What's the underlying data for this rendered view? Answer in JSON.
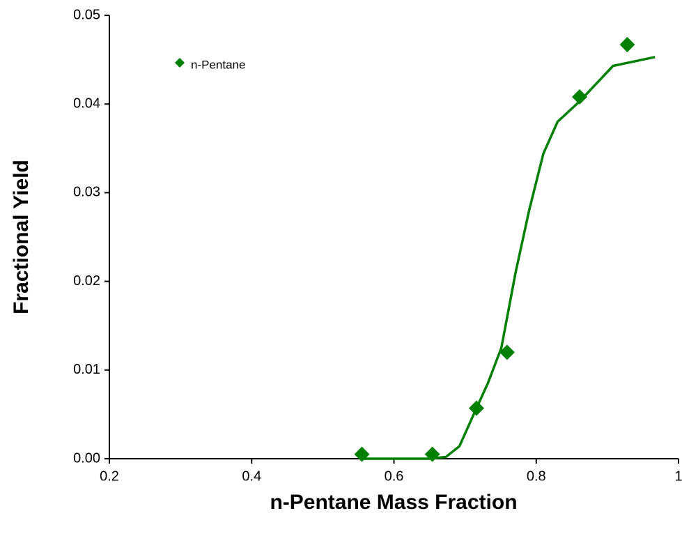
{
  "chart_data": {
    "type": "scatter",
    "xlabel": "n-Pentane Mass Fraction",
    "ylabel": "Fractional Yield",
    "xlim": [
      0.2,
      1
    ],
    "xticks": [
      0.2,
      0.4,
      0.6,
      0.8,
      1
    ],
    "ylim": [
      0,
      0.05
    ],
    "yticks": [
      {
        "value": 0,
        "label": "0.00"
      },
      {
        "value": 0.01,
        "label": "0.01"
      },
      {
        "value": 0.02,
        "label": "0.02"
      },
      {
        "value": 0.03,
        "label": "0.03"
      },
      {
        "value": 0.04,
        "label": "0.04"
      },
      {
        "value": 0.05,
        "label": "0.05"
      }
    ],
    "legend": "upper left",
    "series": [
      {
        "name": "n-Pentane",
        "color": "#008000",
        "x": [
          0.555,
          0.654,
          0.716,
          0.759,
          0.861,
          0.928
        ],
        "values": [
          0.0005,
          0.0005,
          0.0057,
          0.012,
          0.0408,
          0.0467
        ]
      }
    ],
    "fit": {
      "color": "#008000",
      "x": [
        0.555,
        0.6,
        0.65,
        0.673,
        0.692,
        0.716,
        0.732,
        0.751,
        0.771,
        0.79,
        0.81,
        0.83,
        0.861,
        0.908,
        0.967
      ],
      "values": [
        0,
        0,
        0,
        0.0002,
        0.0014,
        0.0057,
        0.0085,
        0.0125,
        0.021,
        0.028,
        0.0344,
        0.038,
        0.0403,
        0.0443,
        0.0453
      ]
    }
  }
}
